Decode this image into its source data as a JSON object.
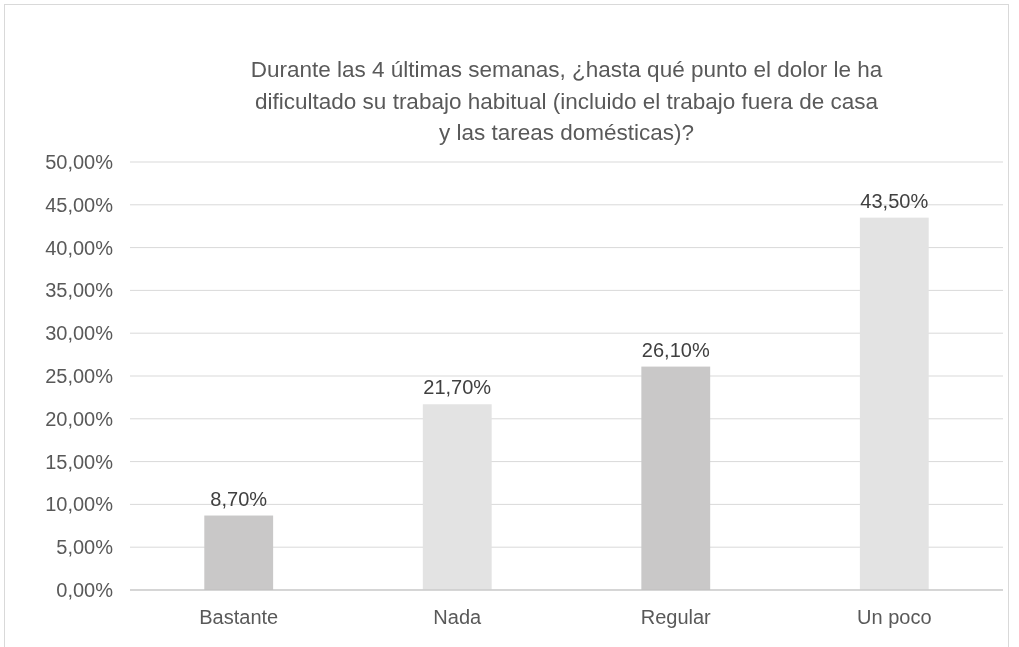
{
  "chart_data": {
    "type": "bar",
    "title": "Durante las 4 últimas semanas, ¿hasta qué punto el dolor le ha dificultado su trabajo habitual (incluido el trabajo fuera de casa y las tareas domésticas)?",
    "categories": [
      "Bastante",
      "Nada",
      "Regular",
      "Un poco"
    ],
    "values": [
      8.7,
      21.7,
      26.1,
      43.5
    ],
    "colors": [
      "#c9c8c8",
      "#e3e3e3",
      "#c9c8c8",
      "#e3e3e3"
    ],
    "value_labels": [
      "8,70%",
      "21,70%",
      "26,10%",
      "43,50%"
    ],
    "ylim": [
      0,
      50
    ],
    "yticks": [
      {
        "value": 0,
        "label": "0,00%"
      },
      {
        "value": 5,
        "label": "5,00%"
      },
      {
        "value": 10,
        "label": "10,00%"
      },
      {
        "value": 15,
        "label": "15,00%"
      },
      {
        "value": 20,
        "label": "20,00%"
      },
      {
        "value": 25,
        "label": "25,00%"
      },
      {
        "value": 30,
        "label": "30,00%"
      },
      {
        "value": 35,
        "label": "35,00%"
      },
      {
        "value": 40,
        "label": "40,00%"
      },
      {
        "value": 45,
        "label": "45,00%"
      },
      {
        "value": 50,
        "label": "50,00%"
      }
    ],
    "grid": "y"
  }
}
